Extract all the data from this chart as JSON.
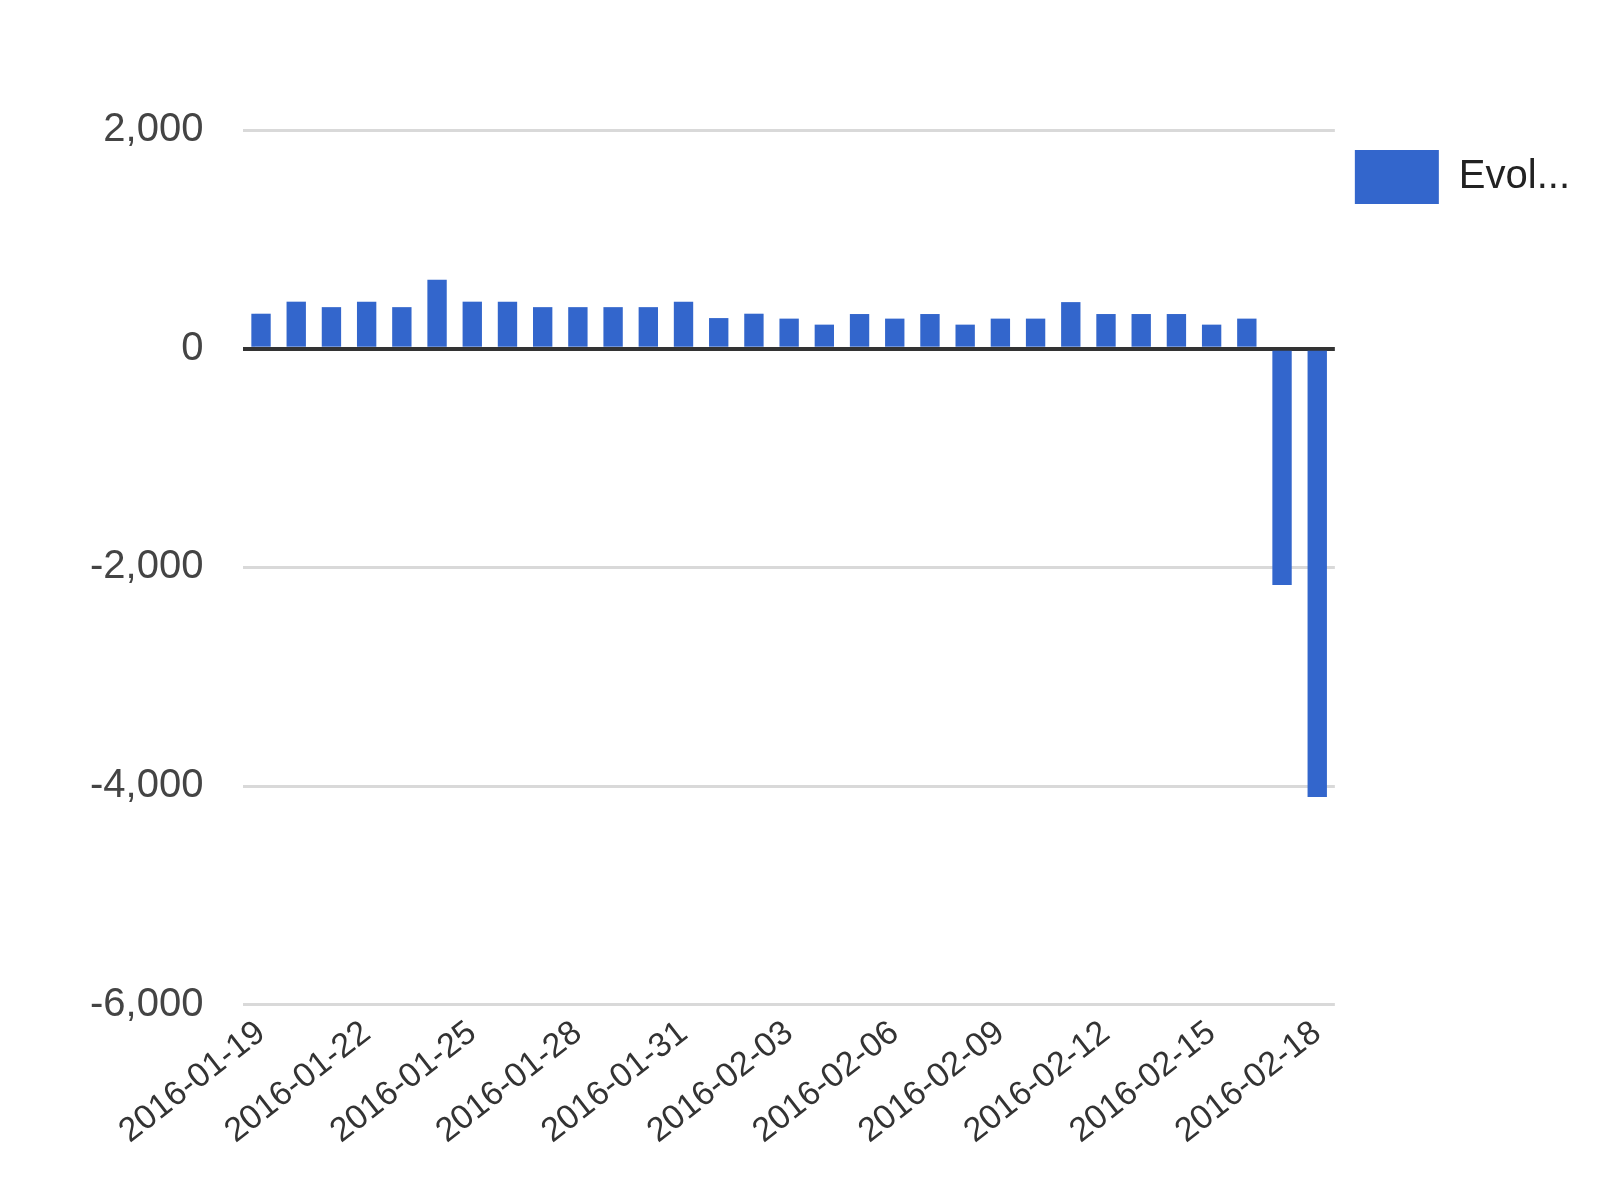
{
  "chart_data": {
    "type": "bar",
    "categories": [
      "2016-01-19",
      null,
      null,
      "2016-01-22",
      null,
      null,
      "2016-01-25",
      null,
      null,
      "2016-01-28",
      null,
      null,
      "2016-01-31",
      null,
      null,
      "2016-02-03",
      null,
      null,
      "2016-02-06",
      null,
      null,
      "2016-02-09",
      null,
      null,
      "2016-02-12",
      null,
      null,
      "2016-02-15",
      null,
      null,
      "2016-02-18"
    ],
    "series": [
      {
        "name": "Evol...",
        "color": "#3366cc",
        "values": [
          320,
          430,
          380,
          430,
          380,
          630,
          430,
          430,
          380,
          380,
          380,
          380,
          430,
          280,
          320,
          275,
          220,
          317,
          275,
          317,
          220,
          275,
          275,
          426,
          317,
          317,
          317,
          220,
          275,
          -2160,
          -4100
        ]
      }
    ],
    "ylim": [
      -6000,
      2000
    ],
    "yticks": [
      {
        "value": -6000,
        "label": "-6,000"
      },
      {
        "value": -4000,
        "label": "-4,000"
      },
      {
        "value": -2000,
        "label": "-2,000"
      },
      0,
      {
        "value": 2000,
        "label": "2,000"
      }
    ],
    "grid": "y",
    "legend": "top right"
  }
}
